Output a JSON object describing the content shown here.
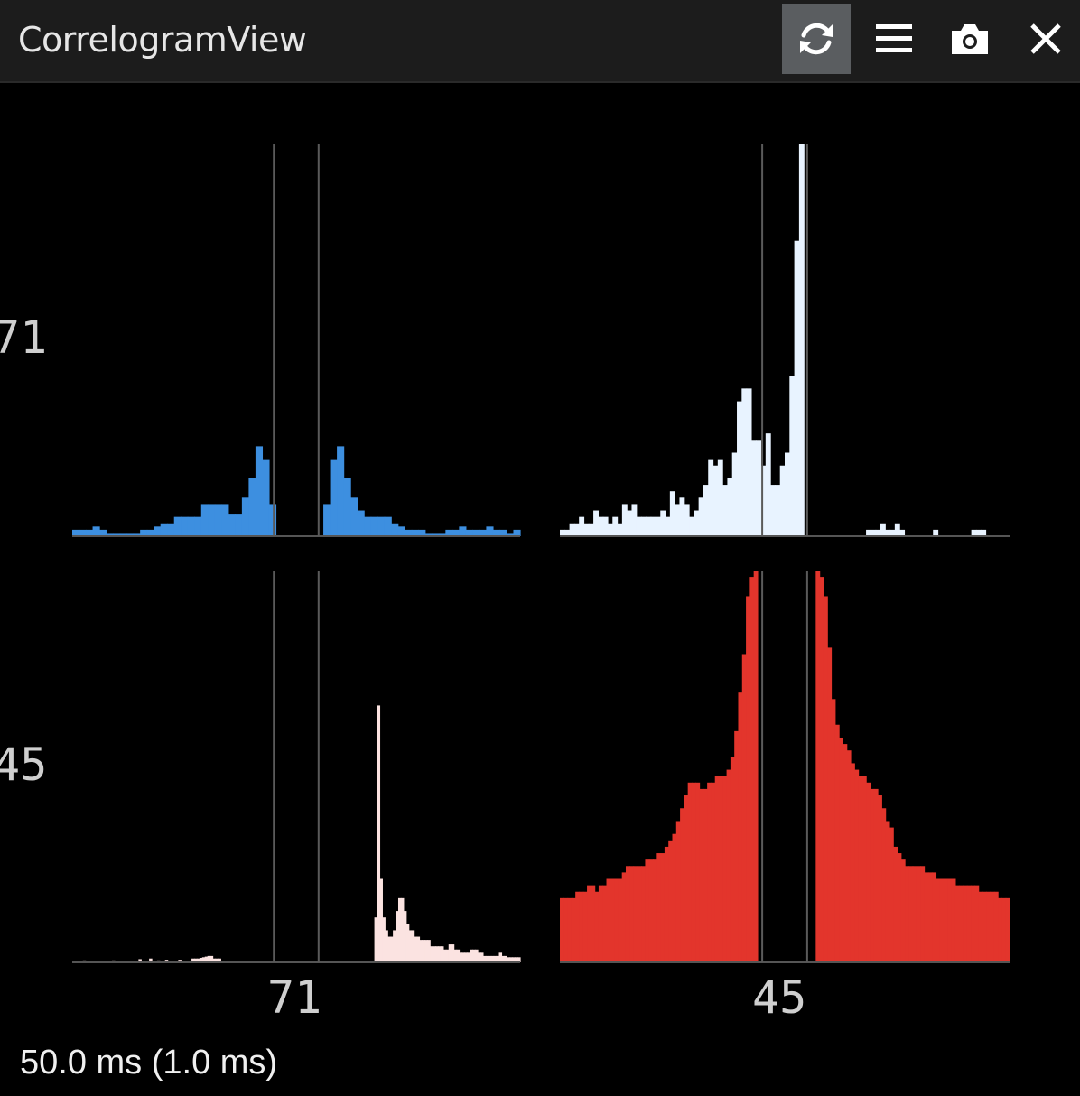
{
  "window": {
    "title": "CorrelogramView",
    "buttons": [
      {
        "name": "refresh",
        "icon": "refresh-icon",
        "active": true
      },
      {
        "name": "menu",
        "icon": "menu-icon",
        "active": false
      },
      {
        "name": "screenshot",
        "icon": "camera-icon",
        "active": false
      },
      {
        "name": "close",
        "icon": "close-icon",
        "active": false
      }
    ]
  },
  "clusters": [
    "71",
    "45"
  ],
  "status_text": "50.0 ms (1.0 ms)",
  "chart_data": {
    "type": "bar",
    "window_ms": 50.0,
    "bin_ms": 1.0,
    "x_range": [
      -25,
      25
    ],
    "refractory_lines_ms": [
      -2.5,
      2.5
    ],
    "ymax_by_row": [
      61,
      61
    ],
    "panels": [
      {
        "row": 0,
        "col": 0,
        "row_cluster": "71",
        "col_cluster": "71",
        "color": "#3d8fe0",
        "values": [
          1,
          1,
          1,
          1.5,
          1,
          0.5,
          0.5,
          0.5,
          0.5,
          0.5,
          1,
          1,
          1.5,
          2,
          2,
          3,
          3,
          3,
          3,
          5,
          5,
          5,
          5,
          3.5,
          3.5,
          6,
          9,
          14,
          12,
          5,
          0,
          0,
          0,
          0,
          0,
          0,
          0,
          5,
          12,
          14,
          9,
          6,
          4,
          3,
          3,
          3,
          3,
          2,
          1.5,
          1,
          1,
          1,
          0.5,
          0.5,
          0.5,
          1,
          1,
          1.5,
          1,
          1,
          1,
          1.5,
          1,
          1,
          0.5,
          1
        ]
      },
      {
        "row": 0,
        "col": 1,
        "row_cluster": "71",
        "col_cluster": "45",
        "color": "#e8f3ff",
        "values": [
          1,
          1,
          2,
          2,
          3,
          2,
          2,
          4,
          3,
          3,
          2,
          3,
          2,
          5,
          4,
          5,
          3,
          3,
          3,
          3,
          3,
          4,
          3,
          7,
          5,
          6,
          5,
          3,
          4,
          6,
          8,
          12,
          11,
          12,
          8,
          9,
          13,
          21,
          23,
          23,
          15,
          15,
          11,
          16,
          8,
          8,
          11,
          13,
          25,
          46,
          61,
          0,
          0,
          0,
          0,
          0,
          0,
          0,
          0,
          0,
          0,
          0,
          0,
          0,
          1,
          1,
          1,
          2,
          1,
          1,
          2,
          1,
          0,
          0,
          0,
          0,
          0,
          0,
          1,
          0,
          0,
          0,
          0,
          0,
          0,
          0,
          1,
          1,
          1,
          0,
          0,
          0,
          0,
          0
        ]
      },
      {
        "row": 1,
        "col": 0,
        "row_cluster": "45",
        "col_cluster": "71",
        "color": "#fbe3e1",
        "values": [
          0,
          0,
          0,
          0,
          0.3,
          0,
          0,
          0,
          0,
          0,
          0,
          0,
          0,
          0,
          0,
          0.3,
          0,
          0,
          0,
          0,
          0,
          0,
          0,
          0,
          0,
          0.5,
          0,
          0,
          0,
          0.6,
          0,
          0,
          0.3,
          0,
          0,
          0.4,
          0,
          0,
          0,
          0,
          0.4,
          0,
          0,
          0,
          0,
          0.6,
          0.6,
          0.6,
          0.7,
          0.8,
          0.9,
          1,
          1,
          0.6,
          0.6,
          0.6,
          0,
          0,
          0,
          0,
          0,
          0,
          0,
          0,
          0,
          0,
          0,
          0,
          0,
          0,
          0,
          0,
          0,
          0,
          0,
          0,
          0,
          0,
          0,
          0,
          0,
          0,
          0,
          0,
          0,
          0,
          0,
          0,
          0,
          0,
          0,
          0,
          0,
          0,
          0,
          0,
          0,
          0,
          0,
          0,
          0,
          0,
          0,
          0,
          0,
          0,
          0,
          0,
          0,
          0,
          0,
          0,
          0,
          0,
          7,
          40,
          13,
          7,
          5,
          4,
          4,
          5,
          8,
          10,
          10,
          8,
          6,
          5,
          5,
          4,
          4,
          3.5,
          3.5,
          3.5,
          3.5,
          2.5,
          2.5,
          2.5,
          2.5,
          2.5,
          2,
          2,
          2.8,
          2.8,
          2,
          2,
          1.5,
          1.5,
          1.5,
          1.5,
          2,
          2,
          2,
          1.5,
          1.5,
          1,
          1,
          1,
          1,
          1,
          1,
          1.5,
          1,
          1,
          0.8,
          0.8,
          0.8,
          0.8,
          0.8
        ]
      },
      {
        "row": 1,
        "col": 1,
        "row_cluster": "45",
        "col_cluster": "45",
        "color": "#e3352c",
        "values": [
          10,
          10,
          10,
          10,
          11,
          11,
          11,
          12,
          12,
          11,
          12,
          12,
          13,
          13,
          13,
          13,
          14,
          15,
          15,
          15,
          15,
          15,
          16,
          16,
          16,
          17,
          17,
          18,
          19,
          20,
          22,
          24,
          26,
          28,
          28,
          28,
          27,
          27,
          28,
          28,
          29,
          29,
          29,
          30,
          32,
          36,
          42,
          48,
          57,
          60,
          61,
          0,
          0,
          0,
          0,
          0,
          0,
          0,
          0,
          0,
          0,
          0,
          0,
          0,
          0,
          0,
          61,
          60,
          57,
          49,
          41,
          37,
          35,
          34,
          33,
          31,
          30,
          29,
          29,
          28,
          27,
          27,
          26,
          24,
          22,
          21,
          18,
          17,
          16,
          15,
          15,
          15,
          15,
          15,
          14,
          14,
          14,
          13,
          13,
          13,
          13,
          13,
          12,
          12,
          12,
          12,
          12,
          12,
          11,
          11,
          11,
          11,
          11,
          10,
          10,
          10
        ]
      }
    ]
  }
}
